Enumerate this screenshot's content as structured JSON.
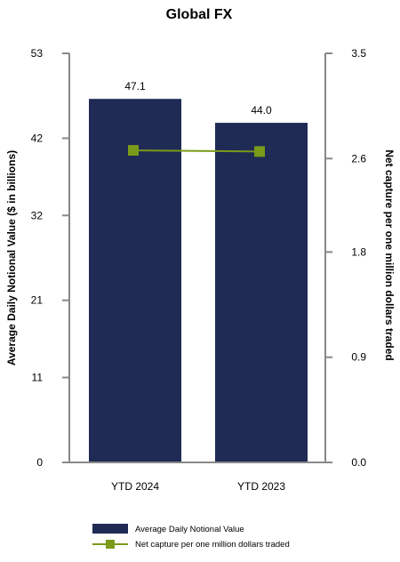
{
  "chart_data": {
    "type": "bar+line",
    "title": "Global FX",
    "categories": [
      "YTD 2024",
      "YTD 2023"
    ],
    "y_left": {
      "label": "Average Daily Notional Value ($ in billions)",
      "range": [
        0,
        53
      ],
      "ticks": [
        "0",
        "11",
        "21",
        "32",
        "42",
        "53"
      ]
    },
    "y_right": {
      "label": "Net capture per one million dollars traded",
      "range": [
        0,
        3.5
      ],
      "ticks": [
        "0.0",
        "0.9",
        "1.8",
        "2.6",
        "3.5"
      ]
    },
    "series": [
      {
        "name": "Average Daily Notional Value",
        "kind": "bar",
        "axis": "left",
        "values": [
          47.1,
          44.0
        ],
        "labels": [
          "47.1",
          "44.0"
        ],
        "color": "#1f2a55"
      },
      {
        "name": "Net capture per one million dollars traded",
        "kind": "line",
        "axis": "right",
        "values": [
          2.67,
          2.66
        ],
        "color": "#7a9a1a"
      }
    ],
    "grid": false,
    "legend_position": "bottom"
  }
}
